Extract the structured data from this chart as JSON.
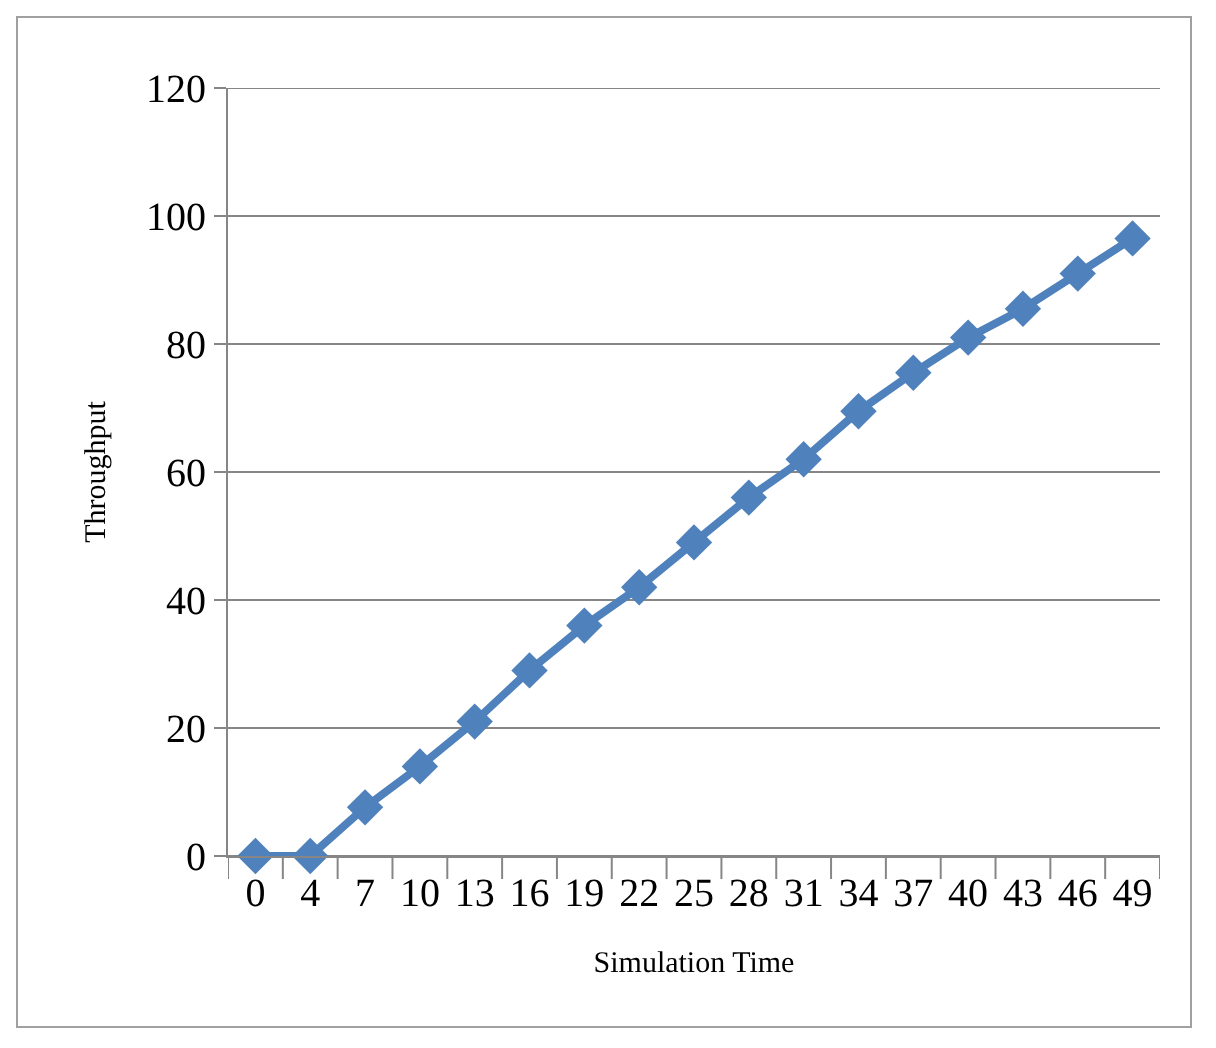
{
  "chart_data": {
    "type": "line",
    "xlabel": "Simulation Time",
    "ylabel": "Throughput",
    "categories": [
      "0",
      "4",
      "7",
      "10",
      "13",
      "16",
      "19",
      "22",
      "25",
      "28",
      "31",
      "34",
      "37",
      "40",
      "43",
      "46",
      "49"
    ],
    "series": [
      {
        "color": "#4f81bd",
        "values": [
          0,
          0,
          7.6,
          14,
          21,
          29,
          36,
          42,
          49,
          56,
          62,
          69.5,
          75.5,
          81,
          85.5,
          91,
          96.5
        ]
      }
    ],
    "ylim": [
      0,
      120
    ],
    "yticks": [
      0,
      20,
      40,
      60,
      80,
      100,
      120
    ],
    "grid": "y",
    "marker": "diamond",
    "line_style": "solid"
  }
}
